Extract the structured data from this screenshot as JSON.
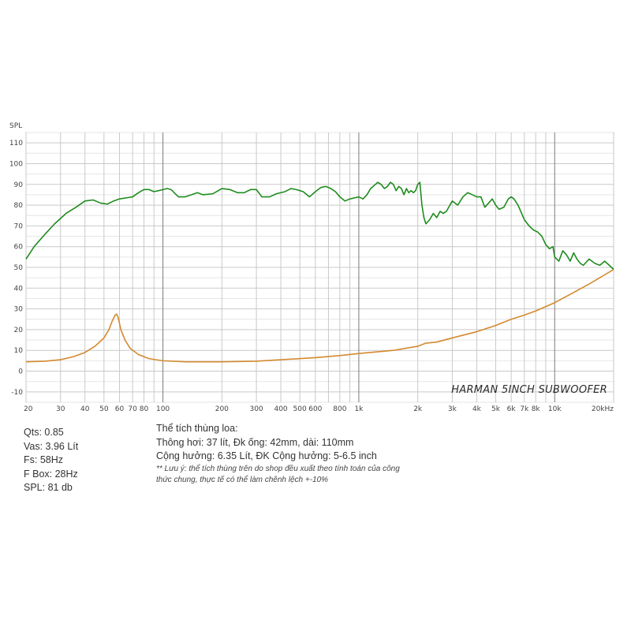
{
  "chart_data": {
    "type": "line",
    "title": "HARMAN 5INCH SUBWOOFER",
    "ylabel": "SPL",
    "xscale": "log",
    "xlim": [
      20,
      20000
    ],
    "ylim": [
      -15,
      115
    ],
    "grid": true,
    "x_ticks": [
      {
        "v": 20,
        "t": "20"
      },
      {
        "v": 30,
        "t": "30"
      },
      {
        "v": 40,
        "t": "40"
      },
      {
        "v": 50,
        "t": "50"
      },
      {
        "v": 60,
        "t": "60"
      },
      {
        "v": 70,
        "t": "70"
      },
      {
        "v": 80,
        "t": "80"
      },
      {
        "v": 100,
        "t": "100"
      },
      {
        "v": 200,
        "t": "200"
      },
      {
        "v": 300,
        "t": "300"
      },
      {
        "v": 400,
        "t": "400"
      },
      {
        "v": 500,
        "t": "500"
      },
      {
        "v": 600,
        "t": "600"
      },
      {
        "v": 800,
        "t": "800"
      },
      {
        "v": 1000,
        "t": "1k"
      },
      {
        "v": 2000,
        "t": "2k"
      },
      {
        "v": 3000,
        "t": "3k"
      },
      {
        "v": 4000,
        "t": "4k"
      },
      {
        "v": 5000,
        "t": "5k"
      },
      {
        "v": 6000,
        "t": "6k"
      },
      {
        "v": 7000,
        "t": "7k"
      },
      {
        "v": 8000,
        "t": "8k"
      },
      {
        "v": 10000,
        "t": "10k"
      },
      {
        "v": 20000,
        "t": "20kHz"
      }
    ],
    "y_ticks": [
      110,
      100,
      90,
      80,
      70,
      60,
      50,
      40,
      30,
      20,
      10,
      0,
      -10
    ],
    "series": [
      {
        "color": "#1e8c1e",
        "x": [
          20,
          22,
          25,
          28,
          32,
          36,
          40,
          44,
          48,
          52,
          56,
          60,
          65,
          70,
          75,
          80,
          85,
          90,
          95,
          100,
          105,
          110,
          120,
          130,
          140,
          150,
          160,
          180,
          200,
          220,
          240,
          260,
          280,
          300,
          320,
          350,
          380,
          420,
          450,
          480,
          520,
          560,
          600,
          640,
          680,
          720,
          760,
          800,
          850,
          900,
          950,
          1000,
          1050,
          1100,
          1150,
          1200,
          1250,
          1300,
          1350,
          1400,
          1450,
          1500,
          1550,
          1600,
          1650,
          1700,
          1750,
          1800,
          1850,
          1900,
          1950,
          2000,
          2050,
          2100,
          2150,
          2200,
          2300,
          2400,
          2500,
          2600,
          2700,
          2800,
          3000,
          3200,
          3400,
          3600,
          3800,
          4000,
          4200,
          4400,
          4600,
          4800,
          5000,
          5200,
          5500,
          5800,
          6000,
          6200,
          6500,
          7000,
          7400,
          7800,
          8200,
          8600,
          9000,
          9400,
          9800,
          10000,
          10500,
          11000,
          11500,
          12000,
          12500,
          13000,
          13500,
          14000,
          15000,
          16000,
          17000,
          18000,
          19000,
          20000
        ],
        "y": [
          54,
          60,
          66,
          71,
          76,
          79,
          82,
          82.5,
          81,
          80.5,
          82,
          83,
          83.5,
          84,
          86,
          87.5,
          87.5,
          86.5,
          87,
          87.5,
          88,
          87.5,
          84,
          84,
          85,
          86,
          85,
          85.5,
          88,
          87.5,
          86,
          86,
          87.5,
          87.5,
          84,
          84,
          85.5,
          86.5,
          88,
          87.5,
          86.5,
          84,
          86.5,
          88.5,
          89,
          88,
          86.5,
          84,
          82,
          83,
          83.5,
          84,
          83,
          85,
          88,
          89.5,
          91,
          90,
          88,
          89,
          91,
          90,
          87,
          89,
          88,
          85,
          88,
          86,
          87,
          86,
          87,
          90,
          91,
          80,
          74,
          71,
          73,
          76,
          74,
          77,
          76,
          77,
          82,
          80,
          84,
          86,
          85,
          84,
          84,
          79,
          81,
          83,
          80,
          78,
          79,
          83,
          84,
          83,
          80,
          73,
          70,
          68,
          67,
          65,
          61,
          59,
          60,
          55,
          53,
          58,
          56,
          53,
          57,
          54,
          52,
          51,
          54,
          52,
          51,
          53,
          51,
          49
        ]
      },
      {
        "color": "#d38a30",
        "x": [
          20,
          25,
          30,
          35,
          40,
          45,
          50,
          53,
          55,
          57,
          58,
          59,
          61,
          64,
          68,
          75,
          85,
          100,
          130,
          200,
          300,
          400,
          600,
          800,
          1000,
          1500,
          2000,
          2200,
          2500,
          3000,
          4000,
          5000,
          6000,
          7000,
          8000,
          10000,
          12000,
          15000,
          20000
        ],
        "y": [
          4.5,
          4.8,
          5.5,
          7,
          9,
          12,
          16,
          20,
          24,
          27,
          27.5,
          26,
          20,
          15,
          11,
          8,
          6,
          5,
          4.5,
          4.5,
          4.8,
          5.5,
          6.5,
          7.5,
          8.5,
          10,
          12,
          13.5,
          14,
          16,
          19,
          22,
          25,
          27,
          29,
          33,
          37,
          42,
          49
        ]
      }
    ]
  },
  "specs": {
    "qts": "Qts: 0.85",
    "vas": "Vas: 3.96 Lít",
    "fs": "Fs: 58Hz",
    "fbox": "F Box: 28Hz",
    "spl": "SPL: 81 db"
  },
  "notes": {
    "heading": "Thể tích thùng loa:",
    "vented": "Thông hơi: 37 lít, Đk ống: 42mm, dài: 110mm",
    "resonance": "Cộng hưởng: 6.35 Lít, ĐK Cộng hưởng: 5-6.5 inch",
    "note_line1": "** Lưu ý: thể tích thùng trên do shop đều xuất theo tính toán của công",
    "note_line2": "thức chung, thực tế có thể làm chênh lệch +-10%"
  }
}
